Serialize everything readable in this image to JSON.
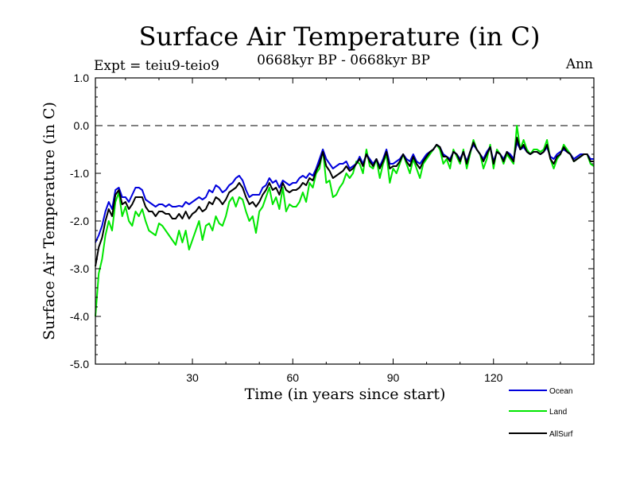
{
  "chart_data": {
    "type": "line",
    "title": "Surface Air Temperature (in C)",
    "subtitle": "0668kyr BP - 0668kyr BP",
    "left_label": "Expt = teiu9-teio9",
    "right_label": "Ann",
    "xlabel": "Time (in years since start)",
    "ylabel": "Surface Air Temperature (in C)",
    "xlim": [
      1,
      150
    ],
    "ylim": [
      -5.0,
      1.0
    ],
    "x_ticks": [
      30,
      60,
      90,
      120
    ],
    "y_ticks": [
      {
        "value": 1.0,
        "label": "1.0"
      },
      {
        "value": 0.0,
        "label": "0.0"
      },
      {
        "value": -1.0,
        "label": "-1.0"
      },
      {
        "value": -2.0,
        "label": "-2.0"
      },
      {
        "value": -3.0,
        "label": "-3.0"
      },
      {
        "value": -4.0,
        "label": "-4.0"
      },
      {
        "value": -5.0,
        "label": "-5.0"
      }
    ],
    "reference_line": 0.0,
    "legend_position": "bottom-right",
    "series": [
      {
        "name": "Land",
        "color": "#00e600",
        "x_start": 1,
        "values": [
          -4.0,
          -3.1,
          -2.8,
          -2.3,
          -2.0,
          -2.2,
          -1.6,
          -1.4,
          -1.9,
          -1.7,
          -2.0,
          -2.1,
          -1.8,
          -1.9,
          -1.75,
          -2.0,
          -2.2,
          -2.25,
          -2.3,
          -2.05,
          -2.1,
          -2.2,
          -2.3,
          -2.4,
          -2.5,
          -2.2,
          -2.45,
          -2.2,
          -2.6,
          -2.4,
          -2.2,
          -2.0,
          -2.4,
          -2.1,
          -2.05,
          -2.2,
          -1.9,
          -2.05,
          -2.1,
          -1.9,
          -1.6,
          -1.5,
          -1.7,
          -1.5,
          -1.55,
          -1.8,
          -2.0,
          -1.9,
          -2.25,
          -1.8,
          -1.7,
          -1.5,
          -1.3,
          -1.65,
          -1.5,
          -1.75,
          -1.3,
          -1.8,
          -1.65,
          -1.7,
          -1.7,
          -1.6,
          -1.4,
          -1.6,
          -1.2,
          -1.3,
          -1.0,
          -0.9,
          -0.5,
          -1.2,
          -1.15,
          -1.5,
          -1.45,
          -1.3,
          -1.2,
          -1.0,
          -1.1,
          -1.0,
          -0.75,
          -0.8,
          -1.0,
          -0.5,
          -0.85,
          -0.9,
          -0.7,
          -1.1,
          -0.8,
          -0.6,
          -1.2,
          -0.9,
          -1.0,
          -0.8,
          -0.6,
          -0.8,
          -1.0,
          -0.7,
          -0.9,
          -1.1,
          -0.8,
          -0.7,
          -0.6,
          -0.5,
          -0.4,
          -0.5,
          -0.8,
          -0.7,
          -0.9,
          -0.5,
          -0.65,
          -0.8,
          -0.5,
          -0.9,
          -0.6,
          -0.3,
          -0.5,
          -0.6,
          -0.9,
          -0.7,
          -0.4,
          -0.9,
          -0.5,
          -0.6,
          -0.8,
          -0.6,
          -0.7,
          -0.8,
          0.0,
          -0.5,
          -0.3,
          -0.5,
          -0.6,
          -0.5,
          -0.5,
          -0.55,
          -0.5,
          -0.3,
          -0.7,
          -0.9,
          -0.7,
          -0.6,
          -0.4,
          -0.5,
          -0.6,
          -0.75,
          -0.7,
          -0.65,
          -0.6,
          -0.6,
          -0.8,
          -0.85
        ]
      },
      {
        "name": "Ocean",
        "color": "#0000dd",
        "x_start": 1,
        "values": [
          -2.45,
          -2.3,
          -2.1,
          -1.8,
          -1.6,
          -1.75,
          -1.35,
          -1.3,
          -1.5,
          -1.5,
          -1.6,
          -1.45,
          -1.3,
          -1.3,
          -1.35,
          -1.55,
          -1.6,
          -1.65,
          -1.7,
          -1.65,
          -1.65,
          -1.7,
          -1.65,
          -1.7,
          -1.7,
          -1.68,
          -1.7,
          -1.6,
          -1.65,
          -1.6,
          -1.55,
          -1.5,
          -1.55,
          -1.5,
          -1.35,
          -1.4,
          -1.25,
          -1.3,
          -1.4,
          -1.35,
          -1.25,
          -1.2,
          -1.1,
          -1.05,
          -1.15,
          -1.35,
          -1.5,
          -1.45,
          -1.45,
          -1.45,
          -1.3,
          -1.25,
          -1.1,
          -1.2,
          -1.15,
          -1.3,
          -1.15,
          -1.2,
          -1.25,
          -1.2,
          -1.2,
          -1.1,
          -1.05,
          -1.1,
          -1.0,
          -1.05,
          -0.9,
          -0.7,
          -0.5,
          -0.7,
          -0.8,
          -0.9,
          -0.85,
          -0.8,
          -0.8,
          -0.75,
          -0.9,
          -0.85,
          -0.8,
          -0.65,
          -0.8,
          -0.6,
          -0.7,
          -0.8,
          -0.7,
          -0.85,
          -0.7,
          -0.5,
          -0.8,
          -0.8,
          -0.75,
          -0.7,
          -0.6,
          -0.7,
          -0.75,
          -0.6,
          -0.75,
          -0.8,
          -0.7,
          -0.6,
          -0.55,
          -0.5,
          -0.4,
          -0.45,
          -0.6,
          -0.65,
          -0.7,
          -0.55,
          -0.6,
          -0.7,
          -0.55,
          -0.75,
          -0.55,
          -0.4,
          -0.5,
          -0.6,
          -0.7,
          -0.55,
          -0.45,
          -0.75,
          -0.55,
          -0.6,
          -0.7,
          -0.55,
          -0.6,
          -0.7,
          -0.35,
          -0.5,
          -0.45,
          -0.55,
          -0.6,
          -0.55,
          -0.55,
          -0.6,
          -0.55,
          -0.45,
          -0.65,
          -0.7,
          -0.6,
          -0.55,
          -0.5,
          -0.55,
          -0.6,
          -0.7,
          -0.65,
          -0.6,
          -0.6,
          -0.6,
          -0.7,
          -0.7
        ]
      },
      {
        "name": "AllSurf",
        "color": "#000000",
        "x_start": 1,
        "values": [
          -2.95,
          -2.55,
          -2.35,
          -2.0,
          -1.75,
          -1.9,
          -1.45,
          -1.35,
          -1.65,
          -1.6,
          -1.75,
          -1.65,
          -1.5,
          -1.5,
          -1.5,
          -1.7,
          -1.8,
          -1.8,
          -1.9,
          -1.8,
          -1.8,
          -1.85,
          -1.85,
          -1.95,
          -1.95,
          -1.85,
          -1.95,
          -1.8,
          -1.95,
          -1.85,
          -1.8,
          -1.7,
          -1.8,
          -1.75,
          -1.6,
          -1.65,
          -1.5,
          -1.55,
          -1.65,
          -1.55,
          -1.4,
          -1.35,
          -1.3,
          -1.2,
          -1.3,
          -1.5,
          -1.65,
          -1.6,
          -1.7,
          -1.6,
          -1.45,
          -1.35,
          -1.2,
          -1.35,
          -1.3,
          -1.45,
          -1.2,
          -1.35,
          -1.4,
          -1.35,
          -1.35,
          -1.3,
          -1.2,
          -1.25,
          -1.1,
          -1.15,
          -0.95,
          -0.8,
          -0.55,
          -0.85,
          -0.95,
          -1.1,
          -1.05,
          -1.0,
          -0.95,
          -0.85,
          -0.95,
          -0.9,
          -0.8,
          -0.7,
          -0.85,
          -0.6,
          -0.75,
          -0.85,
          -0.7,
          -0.9,
          -0.75,
          -0.55,
          -0.9,
          -0.85,
          -0.85,
          -0.75,
          -0.6,
          -0.75,
          -0.85,
          -0.65,
          -0.8,
          -0.9,
          -0.75,
          -0.65,
          -0.55,
          -0.5,
          -0.4,
          -0.45,
          -0.65,
          -0.65,
          -0.75,
          -0.55,
          -0.6,
          -0.75,
          -0.55,
          -0.8,
          -0.55,
          -0.35,
          -0.5,
          -0.6,
          -0.75,
          -0.6,
          -0.45,
          -0.8,
          -0.55,
          -0.6,
          -0.75,
          -0.55,
          -0.65,
          -0.75,
          -0.25,
          -0.5,
          -0.4,
          -0.55,
          -0.6,
          -0.55,
          -0.55,
          -0.6,
          -0.55,
          -0.4,
          -0.7,
          -0.8,
          -0.65,
          -0.6,
          -0.45,
          -0.55,
          -0.6,
          -0.75,
          -0.7,
          -0.65,
          -0.6,
          -0.6,
          -0.75,
          -0.75
        ]
      }
    ],
    "legend_order": [
      "Ocean",
      "Land",
      "AllSurf"
    ]
  }
}
